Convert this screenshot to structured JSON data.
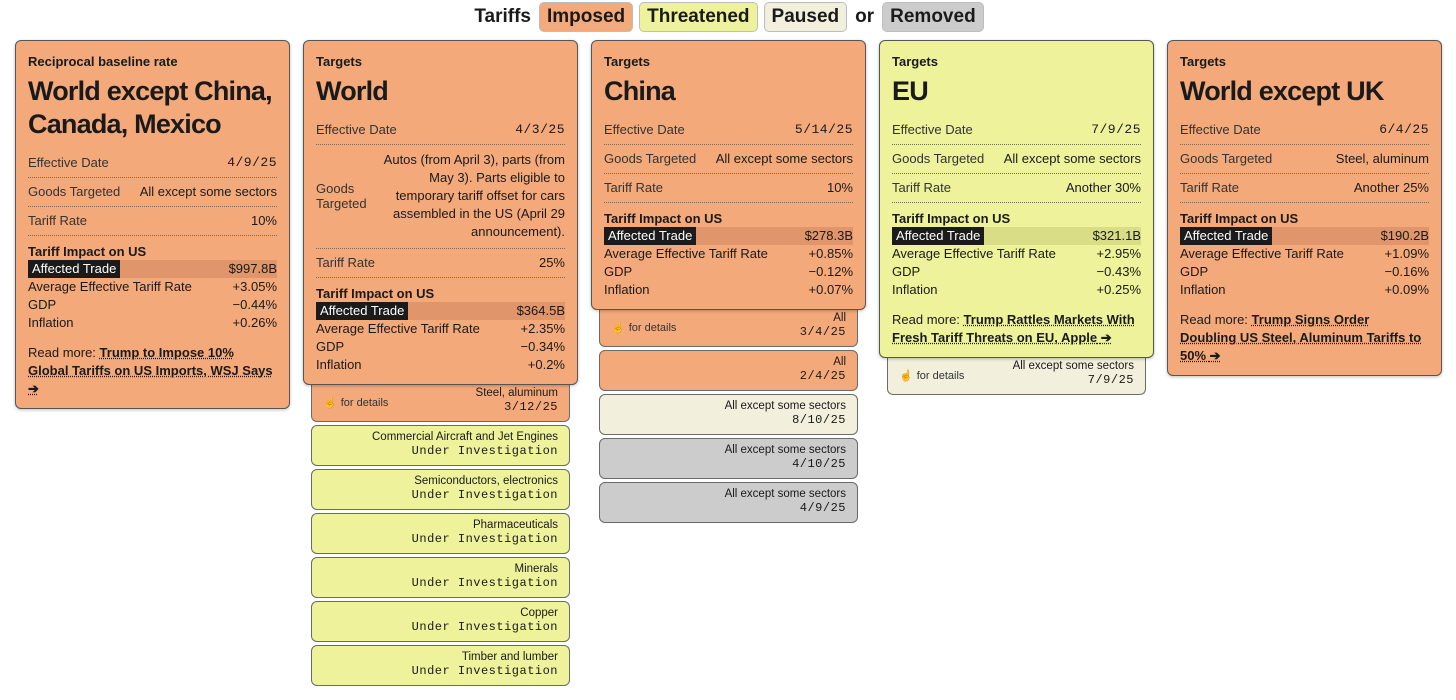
{
  "legend": {
    "prefix": "Tariffs",
    "imposed": "Imposed",
    "threatened": "Threatened",
    "paused": "Paused",
    "or": "or",
    "removed": "Removed"
  },
  "colors": {
    "imposed": "#f4a97a",
    "imposed_dark": "#e0956a",
    "threatened": "#eef29a",
    "threatened_dark": "#d9dd86",
    "paused": "#f2efdc",
    "removed": "#cccccc"
  },
  "labels": {
    "effective_date": "Effective Date",
    "goods_targeted": "Goods Targeted",
    "tariff_rate": "Tariff Rate",
    "impact_header": "Tariff Impact on US",
    "affected_trade": "Affected Trade",
    "avg_rate": "Average Effective Tariff Rate",
    "gdp": "GDP",
    "inflation": "Inflation",
    "read_more": "Read more:",
    "for_details": "for details",
    "arrow": "➔",
    "hand_icon": "hand-pointer-icon"
  },
  "cards": [
    {
      "kicker": "Reciprocal baseline rate",
      "title": "World except China, Canada, Mexico",
      "status": "imposed",
      "effective_date": "4/9/25",
      "goods": "All except some sectors",
      "rate": "10%",
      "affected": "$997.8B",
      "avg": "+3.05%",
      "gdp": "−0.44%",
      "inflation": "+0.26%",
      "read_more": "Trump to Impose 10% Global Tariffs on US Imports, WSJ Says",
      "history": []
    },
    {
      "kicker": "Targets",
      "title": "World",
      "status": "imposed",
      "effective_date": "4/3/25",
      "goods": "Autos (from April 3), parts (from May 3). Parts eligible to temporary tariff offset for cars assembled in the US (April 29 announcement).",
      "rate": "25%",
      "affected": "$364.5B",
      "avg": "+2.35%",
      "gdp": "−0.34%",
      "inflation": "+0.2%",
      "read_more": "",
      "history": [
        {
          "status": "imposed",
          "goods": "Steel, aluminum",
          "date": "3/12/25",
          "details": true
        },
        {
          "status": "threatened",
          "goods": "Commercial Aircraft and Jet Engines",
          "date": "Under Investigation"
        },
        {
          "status": "threatened",
          "goods": "Semiconductors, electronics",
          "date": "Under Investigation"
        },
        {
          "status": "threatened",
          "goods": "Pharmaceuticals",
          "date": "Under Investigation"
        },
        {
          "status": "threatened",
          "goods": "Minerals",
          "date": "Under Investigation"
        },
        {
          "status": "threatened",
          "goods": "Copper",
          "date": "Under Investigation"
        },
        {
          "status": "threatened",
          "goods": "Timber and lumber",
          "date": "Under Investigation"
        }
      ]
    },
    {
      "kicker": "Targets",
      "title": "China",
      "status": "imposed",
      "effective_date": "5/14/25",
      "goods": "All except some sectors",
      "rate": "10%",
      "affected": "$278.3B",
      "avg": "+0.85%",
      "gdp": "−0.12%",
      "inflation": "+0.07%",
      "read_more": "",
      "history": [
        {
          "status": "imposed",
          "goods": "All",
          "date": "3/4/25",
          "details": true
        },
        {
          "status": "imposed",
          "goods": "All",
          "date": "2/4/25"
        },
        {
          "status": "paused",
          "goods": "All except some sectors",
          "date": "8/10/25"
        },
        {
          "status": "removed",
          "goods": "All except some sectors",
          "date": "4/10/25"
        },
        {
          "status": "removed",
          "goods": "All except some sectors",
          "date": "4/9/25"
        }
      ]
    },
    {
      "kicker": "Targets",
      "title": "EU",
      "status": "threatened",
      "effective_date": "7/9/25",
      "goods": "All except some sectors",
      "rate": "Another 30%",
      "affected": "$321.1B",
      "avg": "+2.95%",
      "gdp": "−0.43%",
      "inflation": "+0.25%",
      "read_more": "Trump Rattles Markets With Fresh Tariff Threats on EU, Apple",
      "history": [
        {
          "status": "paused",
          "goods": "All except some sectors",
          "date": "7/9/25",
          "details": true
        }
      ]
    },
    {
      "kicker": "Targets",
      "title": "World except UK",
      "status": "imposed",
      "effective_date": "6/4/25",
      "goods": "Steel, aluminum",
      "rate": "Another 25%",
      "affected": "$190.2B",
      "avg": "+1.09%",
      "gdp": "−0.16%",
      "inflation": "+0.09%",
      "read_more": "Trump Signs Order Doubling US Steel, Aluminum Tariffs to 50%",
      "history": []
    }
  ]
}
